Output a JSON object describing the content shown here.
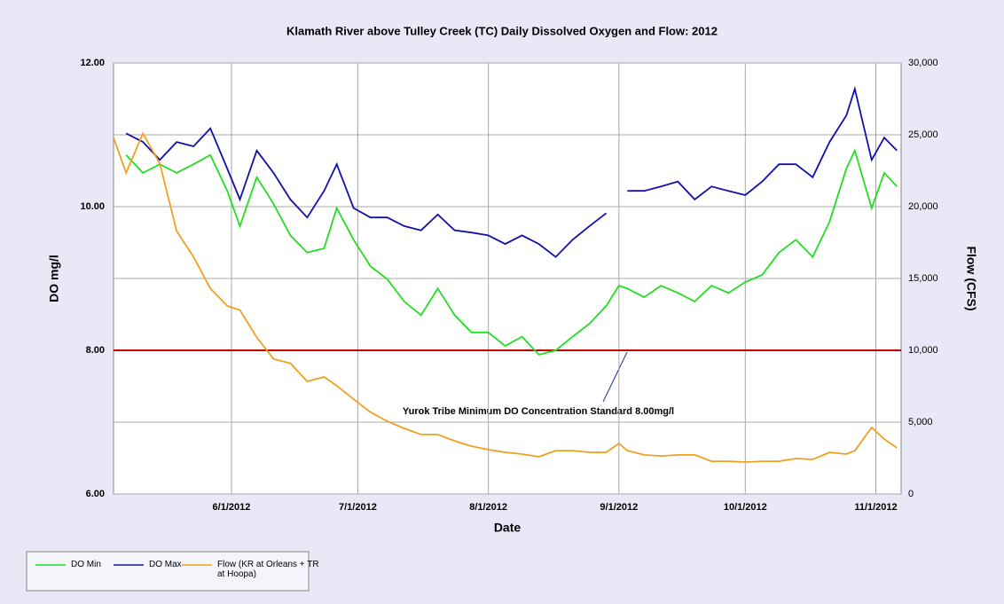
{
  "chart_data": {
    "type": "line",
    "title": "Klamath River above Tulley Creek (TC) Daily Dissolved Oxygen and Flow: 2012",
    "x_label": "Date",
    "y_label": "DO mg/l",
    "y2_label": "Flow (CFS)",
    "x": [
      "2012-05-04",
      "2012-05-07",
      "2012-05-11",
      "2012-05-15",
      "2012-05-19",
      "2012-05-23",
      "2012-05-27",
      "2012-05-31",
      "2012-06-03",
      "2012-06-07",
      "2012-06-11",
      "2012-06-15",
      "2012-06-19",
      "2012-06-23",
      "2012-06-26",
      "2012-06-30",
      "2012-07-04",
      "2012-07-08",
      "2012-07-12",
      "2012-07-16",
      "2012-07-20",
      "2012-07-24",
      "2012-07-28",
      "2012-08-01",
      "2012-08-05",
      "2012-08-09",
      "2012-08-13",
      "2012-08-17",
      "2012-08-21",
      "2012-08-25",
      "2012-08-29",
      "2012-09-01",
      "2012-09-03",
      "2012-09-07",
      "2012-09-11",
      "2012-09-15",
      "2012-09-19",
      "2012-09-23",
      "2012-09-27",
      "2012-10-01",
      "2012-10-05",
      "2012-10-09",
      "2012-10-13",
      "2012-10-17",
      "2012-10-21",
      "2012-10-25",
      "2012-10-27",
      "2012-10-31",
      "2012-11-03",
      "2012-11-06"
    ],
    "xlim": [
      "2012-05-04",
      "2012-11-07"
    ],
    "xticks": [
      {
        "value": "2012-06-01",
        "label": "6/1/2012"
      },
      {
        "value": "2012-07-01",
        "label": "7/1/2012"
      },
      {
        "value": "2012-08-01",
        "label": "8/1/2012"
      },
      {
        "value": "2012-09-01",
        "label": "9/1/2012"
      },
      {
        "value": "2012-10-01",
        "label": "10/1/2012"
      },
      {
        "value": "2012-11-01",
        "label": "11/1/2012"
      }
    ],
    "ylim": [
      6,
      12
    ],
    "yticks": [
      {
        "value": 6,
        "label": "6.00"
      },
      {
        "value": 8,
        "label": "8.00"
      },
      {
        "value": 10,
        "label": "10.00"
      },
      {
        "value": 12,
        "label": "12.00"
      }
    ],
    "y2lim": [
      0,
      30000
    ],
    "y2ticks": [
      0,
      {
        "value": 5000,
        "label": "5,000"
      },
      {
        "value": 10000,
        "label": "10,000"
      },
      {
        "value": 15000,
        "label": "15,000"
      },
      {
        "value": 20000,
        "label": "20,000"
      },
      {
        "value": 25000,
        "label": "25,000"
      },
      {
        "value": 30000,
        "label": "30,000"
      }
    ],
    "grid": true,
    "threshold": 8,
    "threshold_color": "#c00000",
    "annotation": "Yurok Tribe Minimum DO Concentration Standard 8.00mg/l",
    "series": [
      {
        "name": "DO Min",
        "color": "#22dd22",
        "values": [
          null,
          10.72,
          10.47,
          10.59,
          10.47,
          10.59,
          10.72,
          10.22,
          9.73,
          10.41,
          10.04,
          9.6,
          9.36,
          9.42,
          9.98,
          9.54,
          9.17,
          8.99,
          8.68,
          8.49,
          8.86,
          8.49,
          8.25,
          8.25,
          8.06,
          8.19,
          7.94,
          8.0,
          8.19,
          8.37,
          8.62,
          8.9,
          8.86,
          8.74,
          8.9,
          8.8,
          8.68,
          8.9,
          8.8,
          8.95,
          9.05,
          9.36,
          9.54,
          9.3,
          9.79,
          10.53,
          10.78,
          9.98,
          10.47,
          10.28
        ]
      },
      {
        "name": "DO Max",
        "color": "#1111aa",
        "values": [
          null,
          11.02,
          10.9,
          10.65,
          10.9,
          10.84,
          11.09,
          10.53,
          10.1,
          10.78,
          10.47,
          10.1,
          9.85,
          10.22,
          10.59,
          9.98,
          9.85,
          9.85,
          9.73,
          9.67,
          9.89,
          9.67,
          9.64,
          9.6,
          9.48,
          9.6,
          9.48,
          9.3,
          9.54,
          9.73,
          9.91,
          null,
          10.22,
          10.22,
          10.28,
          10.35,
          10.1,
          10.28,
          10.22,
          10.16,
          10.35,
          10.59,
          10.59,
          10.41,
          10.9,
          11.27,
          11.64,
          10.65,
          10.96,
          10.78
        ]
      },
      {
        "name": "Flow (KR at Orleans + TR at Hoopa)",
        "color": "#f0a020",
        "axis": "y2",
        "values": [
          24800,
          22350,
          25100,
          23000,
          18300,
          16500,
          14300,
          13100,
          12800,
          10900,
          9400,
          9100,
          7840,
          8150,
          7530,
          6600,
          5700,
          5060,
          4570,
          4140,
          4140,
          3700,
          3330,
          3090,
          2900,
          2780,
          2590,
          3020,
          3020,
          2900,
          2900,
          3520,
          3020,
          2720,
          2650,
          2720,
          2720,
          2280,
          2280,
          2220,
          2280,
          2280,
          2470,
          2410,
          2900,
          2780,
          3020,
          4630,
          3830,
          3210
        ]
      }
    ]
  }
}
